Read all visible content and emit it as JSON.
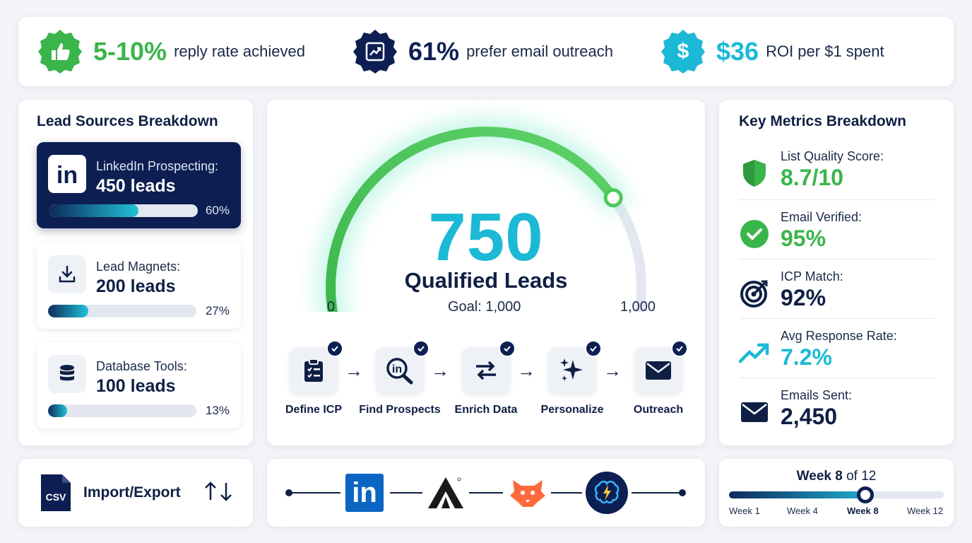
{
  "stats": [
    {
      "value": "5-10%",
      "text": "reply rate achieved",
      "color": "#3ab54a",
      "icon": "thumbs-up-icon"
    },
    {
      "value": "61%",
      "text": "prefer email outreach",
      "color": "#0d1f52",
      "icon": "chart-up-icon"
    },
    {
      "value": "$36",
      "text": "ROI per $1 spent",
      "color": "#1bb9d6",
      "icon": "dollar-icon"
    }
  ],
  "lead_sources": {
    "title": "Lead Sources Breakdown",
    "items": [
      {
        "label": "LinkedIn Prospecting:",
        "value": "450 leads",
        "percent_label": "60%",
        "percent": 60,
        "icon": "linkedin-icon"
      },
      {
        "label": "Lead Magnets:",
        "value": "200 leads",
        "percent_label": "27%",
        "percent": 27,
        "icon": "download-icon"
      },
      {
        "label": "Database Tools:",
        "value": "100 leads",
        "percent_label": "13%",
        "percent": 13,
        "icon": "database-icon"
      }
    ]
  },
  "gauge": {
    "value": "750",
    "label": "Qualified Leads",
    "goal": "Goal: 1,000",
    "min_label": "0",
    "max_label": "1,000",
    "current": 750,
    "max": 1000
  },
  "steps": [
    {
      "label": "Define ICP",
      "icon": "clipboard-icon"
    },
    {
      "label": "Find Prospects",
      "icon": "linkedin-search-icon"
    },
    {
      "label": "Enrich Data",
      "icon": "swap-arrows-icon"
    },
    {
      "label": "Personalize",
      "icon": "sparkles-icon"
    },
    {
      "label": "Outreach",
      "icon": "envelope-icon"
    }
  ],
  "key_metrics": {
    "title": "Key Metrics Breakdown",
    "items": [
      {
        "label": "List Quality Score:",
        "value": "8.7/10",
        "color": "#3ab54a",
        "icon": "shield-icon"
      },
      {
        "label": "Email Verified:",
        "value": "95%",
        "color": "#3ab54a",
        "icon": "check-circle-icon"
      },
      {
        "label": "ICP Match:",
        "value": "92%",
        "color": "#0f1f44",
        "icon": "target-icon"
      },
      {
        "label": "Avg Response Rate:",
        "value": "7.2%",
        "color": "#1bb9d6",
        "icon": "trend-up-icon"
      },
      {
        "label": "Emails Sent:",
        "value": "2,450",
        "color": "#0f1f44",
        "icon": "mail-icon"
      }
    ]
  },
  "import_export": {
    "file_badge": "CSV",
    "label": "Import/Export"
  },
  "integrations": [
    "linkedin-logo",
    "apollo-logo",
    "fox-logo",
    "ai-brain-logo"
  ],
  "integration_text": {
    "linkedin": "in"
  },
  "timeline": {
    "title_prefix": "Week 8",
    "title_suffix": " of 12",
    "current_week": 8,
    "total_weeks": 12,
    "labels": [
      "Week 1",
      "Week 4",
      "Week 8",
      "Week 12"
    ]
  }
}
